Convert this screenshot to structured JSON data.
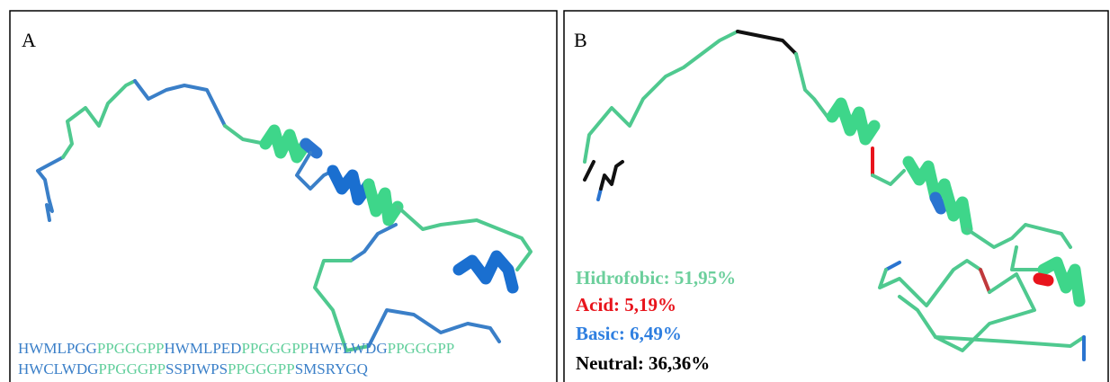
{
  "panels": [
    {
      "label": "A",
      "sequence": [
        [
          {
            "text": "HWMLPGG",
            "color": "#3a7fc8"
          },
          {
            "text": "PPGGGPP",
            "color": "#62cf9c"
          },
          {
            "text": "HWMLPED",
            "color": "#3a7fc8"
          },
          {
            "text": "PPGGGPP",
            "color": "#62cf9c"
          },
          {
            "text": "HWFLWDG",
            "color": "#3a7fc8"
          },
          {
            "text": "PPGGGPP",
            "color": "#62cf9c"
          }
        ],
        [
          {
            "text": "HWCLWDG",
            "color": "#3a7fc8"
          },
          {
            "text": "PPGGGPP",
            "color": "#62cf9c"
          },
          {
            "text": "SSPIWPS",
            "color": "#3a7fc8"
          },
          {
            "text": "PPGGGPP",
            "color": "#62cf9c"
          },
          {
            "text": "SMSRYGQ",
            "color": "#3a7fc8"
          }
        ]
      ]
    },
    {
      "label": "B",
      "legend": [
        {
          "text": "Hidrofobic: 51,95%",
          "color": "#6ccf9c"
        },
        {
          "text": "Acid: 5,19%",
          "color": "#e8141c"
        },
        {
          "text": "Basic: 6,49%",
          "color": "#2f7fe0"
        },
        {
          "text": "Neutral: 36,36%",
          "color": "#000000"
        }
      ]
    }
  ]
}
